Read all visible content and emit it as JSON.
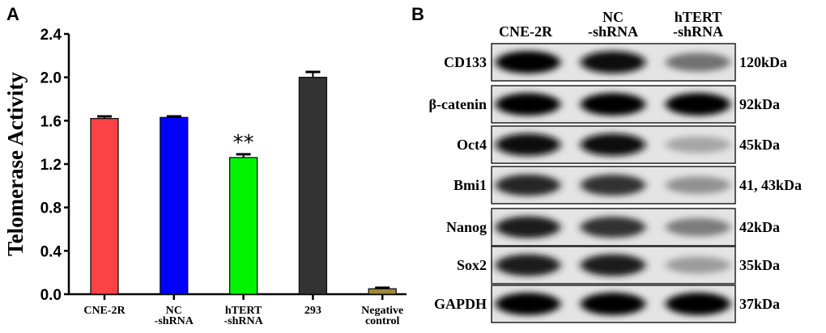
{
  "panel_a_label": "A",
  "panel_b_label": "B",
  "chart_data": {
    "type": "bar",
    "title": "",
    "xlabel": "",
    "ylabel": "Telomerase Activity",
    "ylim": [
      0,
      2.4
    ],
    "yticks": [
      "0.0",
      "0.4",
      "0.8",
      "1.2",
      "1.6",
      "2.0",
      "2.4"
    ],
    "grid": false,
    "categories": [
      [
        "CNE-2R"
      ],
      [
        "NC",
        "-shRNA"
      ],
      [
        "hTERT",
        "-shRNA"
      ],
      [
        "293"
      ],
      [
        "Negative",
        "control"
      ]
    ],
    "values": [
      1.62,
      1.63,
      1.26,
      2.0,
      0.05
    ],
    "errors": [
      0.02,
      0.01,
      0.03,
      0.05,
      0.01
    ],
    "colors": [
      "#fb4245",
      "#0000fb",
      "#00f400",
      "#333333",
      "#a08a38"
    ],
    "annotations": [
      {
        "category_index": 2,
        "text": "**"
      }
    ]
  },
  "blot": {
    "lanes": [
      [
        "CNE-2R"
      ],
      [
        "NC",
        "-shRNA"
      ],
      [
        "hTERT",
        "-shRNA"
      ]
    ],
    "rows": [
      {
        "protein": "CD133",
        "size": "120kDa",
        "intensity": [
          1.0,
          0.95,
          0.5
        ]
      },
      {
        "protein": "β-catenin",
        "size": "92kDa",
        "intensity": [
          1.0,
          1.0,
          1.0
        ]
      },
      {
        "protein": "Oct4",
        "size": "45kDa",
        "intensity": [
          0.95,
          0.95,
          0.25
        ]
      },
      {
        "protein": "Bmi1",
        "size": "41, 43kDa",
        "intensity": [
          0.85,
          0.8,
          0.35
        ]
      },
      {
        "protein": "Nanog",
        "size": "42kDa",
        "intensity": [
          0.9,
          0.8,
          0.45
        ]
      },
      {
        "protein": "Sox2",
        "size": "35kDa",
        "intensity": [
          0.9,
          0.9,
          0.3
        ]
      },
      {
        "protein": "GAPDH",
        "size": "37kDa",
        "intensity": [
          1.0,
          1.0,
          1.0
        ]
      }
    ]
  }
}
